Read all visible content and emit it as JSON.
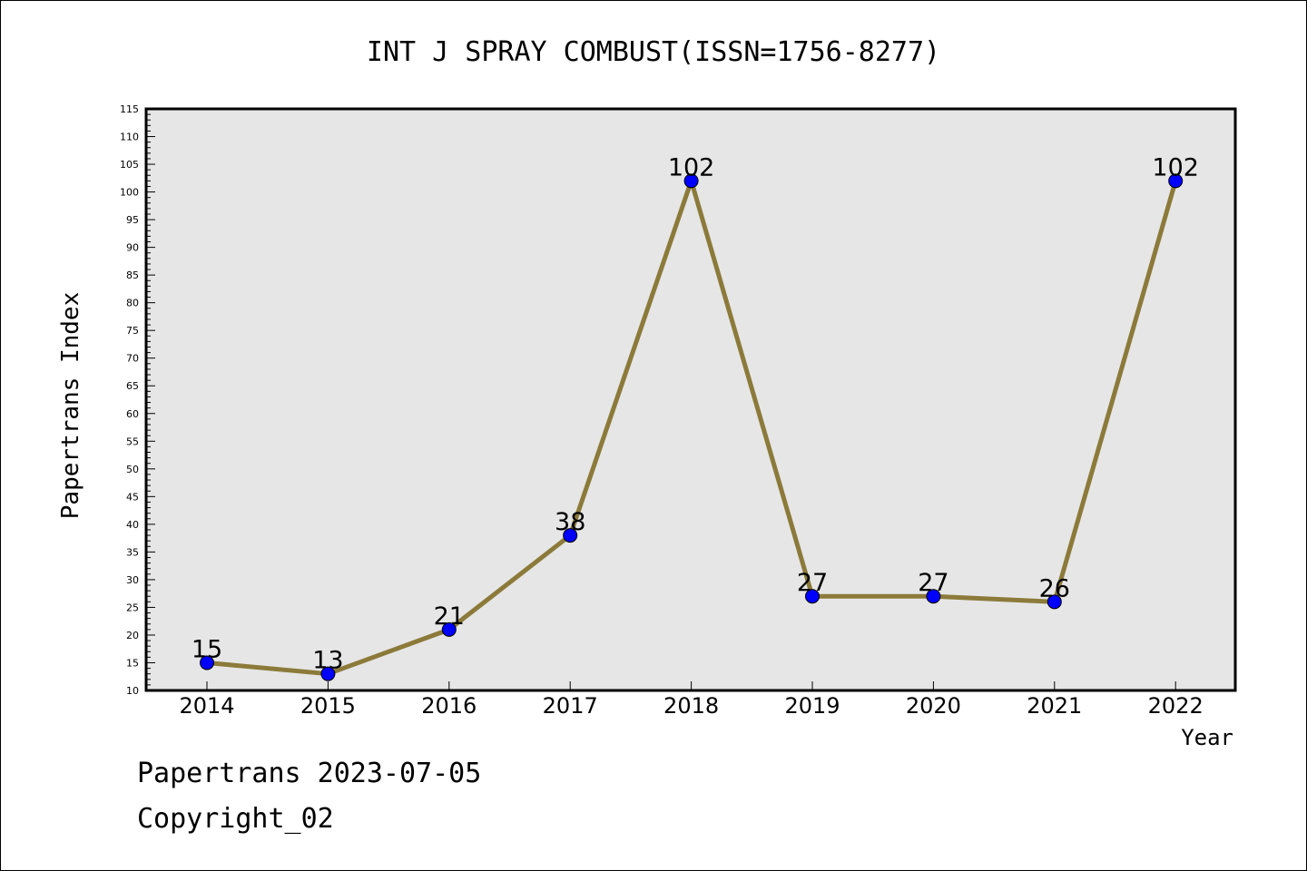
{
  "chart_data": {
    "type": "line",
    "title": "INT J SPRAY COMBUST(ISSN=1756-8277)",
    "xlabel": "Year",
    "ylabel": "Papertrans Index",
    "categories": [
      "2014",
      "2015",
      "2016",
      "2017",
      "2018",
      "2019",
      "2020",
      "2021",
      "2022"
    ],
    "series": [
      {
        "values": [
          15,
          13,
          21,
          38,
          102,
          27,
          27,
          26,
          102
        ]
      }
    ],
    "data_labels": [
      "15",
      "13",
      "21",
      "38",
      "102",
      "27",
      "27",
      "26",
      "102"
    ],
    "ylim": [
      10,
      115
    ],
    "yticks": [
      "10",
      "15",
      "20",
      "25",
      "30",
      "35",
      "40",
      "45",
      "50",
      "55",
      "60",
      "65",
      "70",
      "75",
      "80",
      "85",
      "90",
      "95",
      "100",
      "105",
      "110",
      "115"
    ],
    "grid": false,
    "legend": "none",
    "colors": {
      "line": "#8c7a3a",
      "marker": "#0000ff",
      "plot_background": "#e6e6e6"
    }
  },
  "footer": {
    "date_text": "Papertrans 2023-07-05",
    "copyright_text": "Copyright_02"
  }
}
